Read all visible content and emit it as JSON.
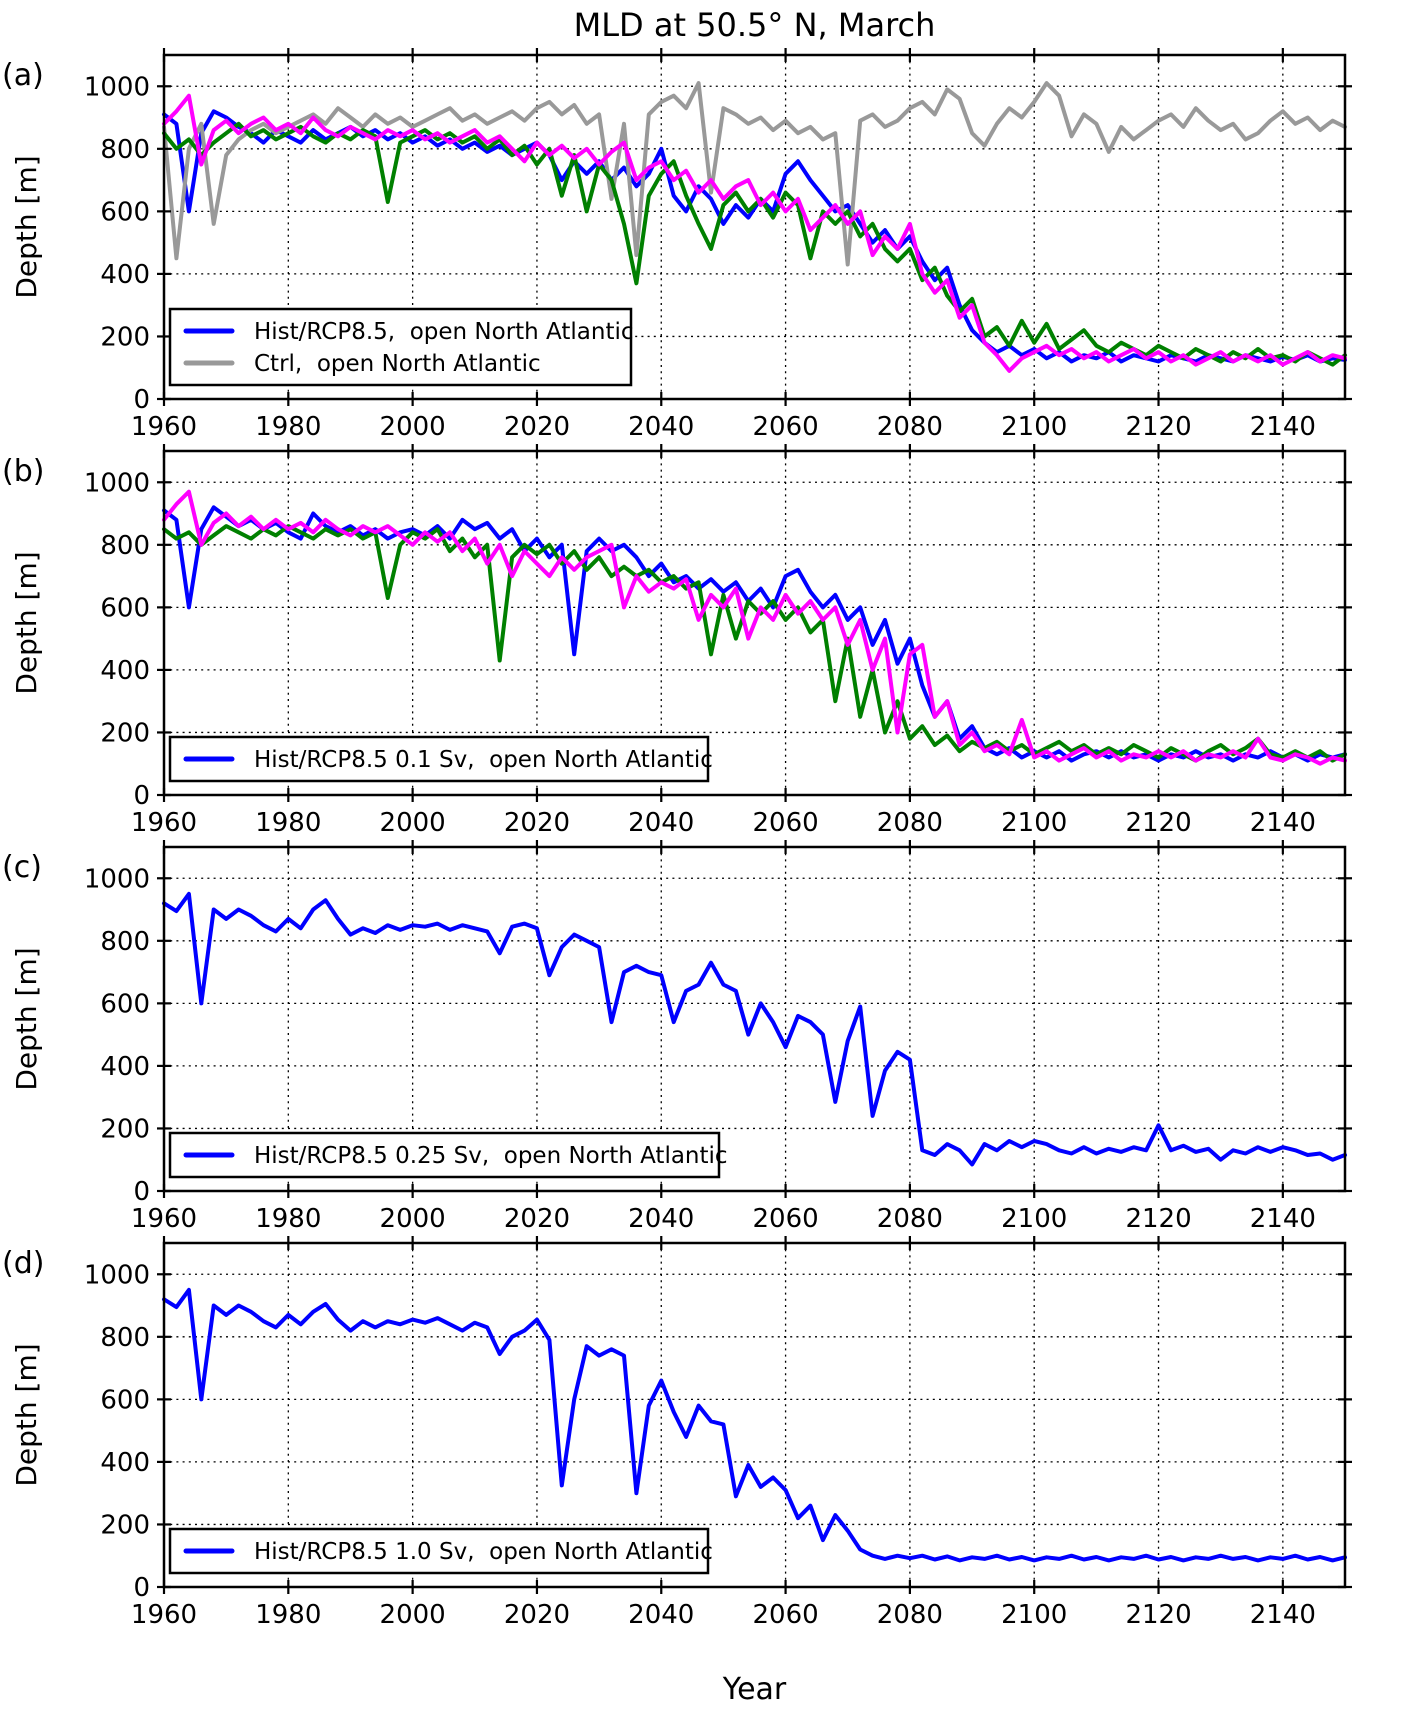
{
  "figure": {
    "title": "MLD at 50.5° N, March",
    "xlabel": "Year",
    "ylabel": "Depth [m]"
  },
  "colors": {
    "blue": "#0000ff",
    "green": "#008000",
    "magenta": "#ff00ff",
    "gray": "#999999",
    "frame": "#000000"
  },
  "chart_data": [
    {
      "type": "line",
      "panel": "(a)",
      "ylabel": "Depth [m]",
      "xlim": [
        1960,
        2150
      ],
      "ylim": [
        0,
        1100
      ],
      "xticks": [
        1960,
        1980,
        2000,
        2020,
        2040,
        2060,
        2080,
        2100,
        2120,
        2140
      ],
      "yticks": [
        0,
        200,
        400,
        600,
        800,
        1000
      ],
      "grid": true,
      "x_start": 1960,
      "x_step": 2,
      "legend": [
        {
          "label": "Hist/RCP8.5,  open North Atlantic",
          "color": "#0000ff"
        },
        {
          "label": "Ctrl,  open North Atlantic",
          "color": "#999999"
        }
      ],
      "series": [
        {
          "name": "hist-rcp85-blue",
          "color": "#0000ff",
          "values": [
            910,
            880,
            600,
            850,
            920,
            900,
            870,
            850,
            820,
            860,
            840,
            820,
            860,
            830,
            850,
            870,
            840,
            860,
            830,
            850,
            820,
            840,
            810,
            830,
            800,
            820,
            790,
            810,
            780,
            800,
            820,
            780,
            700,
            760,
            720,
            760,
            700,
            740,
            680,
            720,
            800,
            650,
            600,
            680,
            640,
            560,
            620,
            580,
            640,
            600,
            720,
            760,
            700,
            650,
            600,
            620,
            560,
            500,
            540,
            480,
            520,
            440,
            380,
            420,
            300,
            220,
            180,
            150,
            170,
            140,
            160,
            130,
            150,
            120,
            140,
            130,
            150,
            120,
            140,
            130,
            120,
            140,
            130,
            120,
            140,
            130,
            120,
            140,
            130,
            120,
            135,
            125,
            140,
            120,
            130,
            125
          ]
        },
        {
          "name": "ctrl-gray",
          "color": "#999999",
          "values": [
            870,
            450,
            800,
            880,
            560,
            780,
            830,
            860,
            880,
            850,
            870,
            890,
            910,
            880,
            930,
            900,
            870,
            910,
            880,
            900,
            870,
            890,
            910,
            930,
            890,
            910,
            880,
            900,
            920,
            890,
            930,
            950,
            910,
            940,
            880,
            910,
            640,
            880,
            460,
            910,
            950,
            970,
            930,
            1010,
            660,
            930,
            910,
            880,
            900,
            860,
            890,
            850,
            870,
            830,
            850,
            430,
            890,
            910,
            870,
            890,
            930,
            950,
            910,
            990,
            960,
            850,
            810,
            880,
            930,
            900,
            950,
            1010,
            970,
            840,
            910,
            880,
            790,
            870,
            830,
            860,
            890,
            910,
            870,
            930,
            890,
            860,
            880,
            830,
            850,
            890,
            920,
            880,
            900,
            860,
            890,
            870
          ]
        },
        {
          "name": "hist-rcp85-green",
          "color": "#008000",
          "values": [
            850,
            800,
            830,
            780,
            820,
            850,
            880,
            840,
            860,
            830,
            850,
            870,
            840,
            820,
            850,
            830,
            860,
            840,
            630,
            820,
            840,
            860,
            830,
            850,
            820,
            840,
            800,
            830,
            780,
            810,
            750,
            800,
            650,
            780,
            600,
            750,
            700,
            560,
            370,
            650,
            720,
            760,
            650,
            560,
            480,
            620,
            660,
            600,
            640,
            580,
            660,
            620,
            450,
            600,
            560,
            600,
            520,
            560,
            480,
            440,
            480,
            380,
            420,
            330,
            280,
            320,
            200,
            230,
            170,
            250,
            180,
            240,
            160,
            190,
            220,
            170,
            150,
            180,
            160,
            140,
            170,
            150,
            130,
            160,
            140,
            120,
            150,
            130,
            160,
            130,
            140,
            120,
            150,
            130,
            110,
            140
          ]
        },
        {
          "name": "hist-rcp85-magenta",
          "color": "#ff00ff",
          "values": [
            880,
            920,
            970,
            750,
            860,
            890,
            850,
            880,
            900,
            860,
            880,
            850,
            900,
            860,
            840,
            870,
            850,
            830,
            860,
            840,
            860,
            830,
            850,
            820,
            840,
            860,
            820,
            840,
            800,
            760,
            820,
            780,
            810,
            770,
            800,
            750,
            790,
            820,
            700,
            740,
            760,
            700,
            730,
            660,
            700,
            640,
            680,
            700,
            620,
            660,
            600,
            640,
            540,
            580,
            620,
            560,
            600,
            460,
            520,
            480,
            560,
            400,
            340,
            380,
            260,
            300,
            180,
            140,
            90,
            130,
            150,
            170,
            140,
            160,
            130,
            150,
            120,
            140,
            160,
            130,
            150,
            120,
            140,
            110,
            130,
            150,
            120,
            140,
            120,
            140,
            110,
            130,
            150,
            120,
            140,
            130
          ]
        }
      ]
    },
    {
      "type": "line",
      "panel": "(b)",
      "ylabel": "Depth [m]",
      "xlim": [
        1960,
        2150
      ],
      "ylim": [
        0,
        1100
      ],
      "xticks": [
        1960,
        1980,
        2000,
        2020,
        2040,
        2060,
        2080,
        2100,
        2120,
        2140
      ],
      "yticks": [
        0,
        200,
        400,
        600,
        800,
        1000
      ],
      "grid": true,
      "x_start": 1960,
      "x_step": 2,
      "legend": [
        {
          "label": "Hist/RCP8.5 0.1 Sv,  open North Atlantic",
          "color": "#0000ff"
        }
      ],
      "series": [
        {
          "name": "hosing01-blue",
          "color": "#0000ff",
          "values": [
            910,
            880,
            600,
            850,
            920,
            890,
            860,
            880,
            850,
            870,
            840,
            820,
            900,
            860,
            840,
            860,
            830,
            850,
            820,
            840,
            850,
            830,
            860,
            820,
            880,
            850,
            870,
            820,
            850,
            780,
            820,
            760,
            800,
            450,
            780,
            820,
            780,
            800,
            760,
            700,
            740,
            680,
            700,
            660,
            690,
            650,
            680,
            620,
            660,
            600,
            700,
            720,
            650,
            600,
            640,
            560,
            600,
            480,
            560,
            420,
            500,
            350,
            250,
            300,
            180,
            220,
            150,
            130,
            150,
            120,
            140,
            120,
            140,
            110,
            130,
            140,
            120,
            140,
            120,
            130,
            110,
            130,
            120,
            140,
            120,
            130,
            110,
            130,
            120,
            140,
            120,
            130,
            110,
            130,
            120,
            130
          ]
        },
        {
          "name": "hosing01-green",
          "color": "#008000",
          "values": [
            850,
            820,
            840,
            800,
            830,
            860,
            840,
            820,
            850,
            830,
            860,
            840,
            820,
            850,
            830,
            850,
            820,
            840,
            630,
            800,
            840,
            820,
            850,
            780,
            820,
            760,
            800,
            430,
            760,
            800,
            770,
            800,
            740,
            780,
            720,
            760,
            700,
            730,
            700,
            720,
            680,
            700,
            660,
            680,
            450,
            640,
            500,
            620,
            580,
            620,
            560,
            600,
            520,
            560,
            300,
            500,
            250,
            400,
            200,
            300,
            180,
            220,
            160,
            190,
            140,
            170,
            150,
            170,
            140,
            160,
            130,
            150,
            170,
            140,
            160,
            130,
            150,
            130,
            160,
            140,
            120,
            150,
            130,
            110,
            140,
            160,
            130,
            150,
            180,
            130,
            120,
            140,
            120,
            140,
            110,
            130
          ]
        },
        {
          "name": "hosing01-magenta",
          "color": "#ff00ff",
          "values": [
            880,
            930,
            970,
            800,
            870,
            900,
            860,
            890,
            850,
            880,
            850,
            870,
            840,
            880,
            850,
            830,
            860,
            840,
            860,
            830,
            800,
            840,
            810,
            840,
            780,
            820,
            740,
            800,
            700,
            780,
            740,
            700,
            760,
            720,
            760,
            780,
            800,
            600,
            700,
            650,
            680,
            660,
            690,
            560,
            640,
            600,
            660,
            500,
            600,
            560,
            640,
            580,
            620,
            560,
            600,
            480,
            560,
            400,
            500,
            200,
            450,
            480,
            250,
            300,
            160,
            200,
            140,
            160,
            130,
            240,
            120,
            140,
            110,
            130,
            150,
            120,
            140,
            110,
            130,
            120,
            140,
            120,
            140,
            110,
            130,
            120,
            140,
            120,
            180,
            120,
            110,
            130,
            120,
            100,
            120,
            110
          ]
        }
      ]
    },
    {
      "type": "line",
      "panel": "(c)",
      "ylabel": "Depth [m]",
      "xlim": [
        1960,
        2150
      ],
      "ylim": [
        0,
        1100
      ],
      "xticks": [
        1960,
        1980,
        2000,
        2020,
        2040,
        2060,
        2080,
        2100,
        2120,
        2140
      ],
      "yticks": [
        0,
        200,
        400,
        600,
        800,
        1000
      ],
      "grid": true,
      "x_start": 1960,
      "x_step": 2,
      "legend": [
        {
          "label": "Hist/RCP8.5 0.25 Sv,  open North Atlantic",
          "color": "#0000ff"
        }
      ],
      "series": [
        {
          "name": "hosing025-blue",
          "color": "#0000ff",
          "values": [
            920,
            895,
            950,
            600,
            900,
            870,
            900,
            880,
            850,
            830,
            870,
            840,
            900,
            930,
            870,
            820,
            840,
            825,
            850,
            835,
            850,
            845,
            855,
            835,
            850,
            840,
            830,
            760,
            845,
            855,
            840,
            690,
            780,
            820,
            800,
            780,
            540,
            700,
            720,
            700,
            690,
            540,
            640,
            660,
            730,
            660,
            640,
            500,
            600,
            540,
            460,
            560,
            540,
            500,
            285,
            480,
            590,
            240,
            385,
            445,
            420,
            130,
            115,
            150,
            130,
            85,
            150,
            130,
            160,
            140,
            160,
            150,
            130,
            120,
            140,
            120,
            135,
            125,
            140,
            130,
            210,
            130,
            145,
            125,
            135,
            100,
            130,
            120,
            140,
            125,
            140,
            130,
            115,
            120,
            100,
            115
          ]
        }
      ]
    },
    {
      "type": "line",
      "panel": "(d)",
      "ylabel": "Depth [m]",
      "xlim": [
        1960,
        2150
      ],
      "ylim": [
        0,
        1100
      ],
      "xticks": [
        1960,
        1980,
        2000,
        2020,
        2040,
        2060,
        2080,
        2100,
        2120,
        2140
      ],
      "yticks": [
        0,
        200,
        400,
        600,
        800,
        1000
      ],
      "grid": true,
      "x_start": 1960,
      "x_step": 2,
      "legend": [
        {
          "label": "Hist/RCP8.5 1.0 Sv,  open North Atlantic",
          "color": "#0000ff"
        }
      ],
      "series": [
        {
          "name": "hosing10-blue",
          "color": "#0000ff",
          "values": [
            920,
            895,
            950,
            600,
            900,
            870,
            900,
            880,
            850,
            830,
            870,
            840,
            880,
            905,
            855,
            820,
            850,
            830,
            850,
            840,
            855,
            845,
            860,
            840,
            820,
            845,
            830,
            745,
            800,
            820,
            855,
            790,
            325,
            600,
            770,
            740,
            760,
            740,
            300,
            580,
            660,
            560,
            480,
            580,
            530,
            520,
            290,
            390,
            320,
            350,
            310,
            220,
            260,
            150,
            230,
            180,
            120,
            100,
            90,
            100,
            92,
            100,
            88,
            98,
            85,
            95,
            90,
            100,
            88,
            96,
            85,
            95,
            90,
            100,
            88,
            96,
            85,
            95,
            90,
            100,
            88,
            96,
            85,
            95,
            90,
            100,
            90,
            96,
            85,
            95,
            90,
            100,
            88,
            96,
            85,
            95
          ]
        }
      ]
    }
  ]
}
